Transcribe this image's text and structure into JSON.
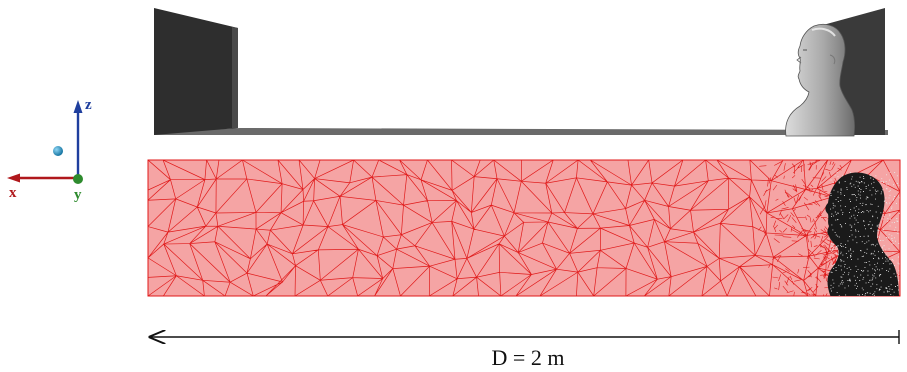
{
  "axes": {
    "x_label": "x",
    "y_label": "y",
    "z_label": "z"
  },
  "dimension": {
    "label": "D = 2 m"
  },
  "colors": {
    "x_axis": "#b0181c",
    "y_axis": "#2e8b2e",
    "z_axis": "#1f3f9e",
    "mesh_fill": "#f5a4a4",
    "mesh_edge": "#e01a1a",
    "panel": "#2e2e2e",
    "floor": "#6a6a6a",
    "head_geometry": "#a8a8a8",
    "head_mesh": "#1a1a1a",
    "dot": "#1b8fc0"
  },
  "icons": {
    "left_panel": "left-panel-icon",
    "right_panel": "right-panel-icon",
    "head_geometry": "human-head-icon",
    "head_mesh": "meshed-head-icon",
    "source_point": "source-point-icon"
  }
}
